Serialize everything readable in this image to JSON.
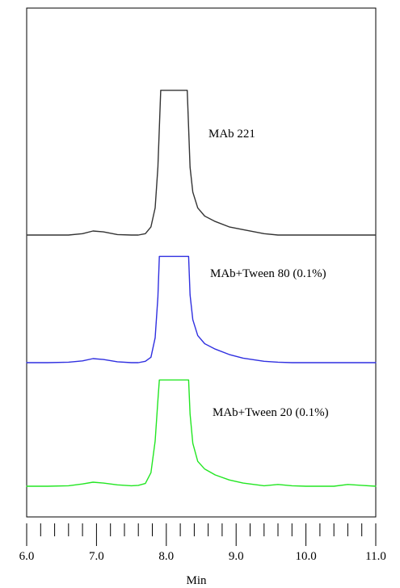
{
  "chart_data": {
    "type": "line",
    "title": "",
    "xlabel": "Min",
    "ylabel": "",
    "xlim": [
      6.0,
      11.0
    ],
    "x_ticks": [
      6.0,
      7.0,
      8.0,
      9.0,
      10.0,
      11.0
    ],
    "x_tick_labels": [
      "6.0",
      "7.0",
      "8.0",
      "9.0",
      "10.0",
      "11.0"
    ],
    "minor_tick_step": 0.1,
    "grid": false,
    "legend": "none",
    "series": [
      {
        "name": "MAb 221",
        "color": "#333333",
        "x": [
          6.0,
          6.3,
          6.6,
          6.8,
          6.95,
          7.1,
          7.3,
          7.5,
          7.6,
          7.7,
          7.78,
          7.84,
          7.88,
          7.92,
          8.3,
          8.34,
          8.38,
          8.45,
          8.55,
          8.7,
          8.9,
          9.1,
          9.4,
          9.6,
          9.8,
          10.0,
          10.2,
          10.4,
          10.6,
          10.8,
          11.0
        ],
        "y": [
          0.0,
          0.0,
          0.0,
          0.03,
          0.09,
          0.07,
          0.01,
          0.0,
          0.0,
          0.03,
          0.18,
          0.6,
          1.5,
          3.2,
          3.2,
          1.5,
          0.95,
          0.6,
          0.42,
          0.3,
          0.18,
          0.12,
          0.03,
          0.0,
          0.0,
          0.0,
          0.0,
          0.0,
          0.0,
          0.0,
          0.0
        ]
      },
      {
        "name": "MAb+Tween 80 (0.1%)",
        "color": "#2f2fe0",
        "x": [
          6.0,
          6.3,
          6.6,
          6.8,
          6.95,
          7.1,
          7.3,
          7.5,
          7.6,
          7.7,
          7.78,
          7.84,
          7.88,
          7.9,
          8.32,
          8.34,
          8.38,
          8.45,
          8.55,
          8.7,
          8.9,
          9.1,
          9.4,
          9.6,
          9.8,
          10.0,
          10.2,
          10.4,
          10.6,
          10.8,
          11.0
        ],
        "y": [
          0.0,
          0.0,
          0.01,
          0.04,
          0.09,
          0.07,
          0.02,
          0.0,
          0.0,
          0.03,
          0.12,
          0.55,
          1.45,
          2.35,
          2.35,
          1.5,
          0.95,
          0.6,
          0.42,
          0.3,
          0.18,
          0.1,
          0.03,
          0.01,
          0.0,
          0.0,
          0.0,
          0.0,
          0.0,
          0.0,
          0.0
        ]
      },
      {
        "name": "MAb+Tween 20 (0.1%)",
        "color": "#22e622",
        "x": [
          6.0,
          6.3,
          6.6,
          6.8,
          6.95,
          7.1,
          7.3,
          7.5,
          7.6,
          7.7,
          7.78,
          7.84,
          7.88,
          7.9,
          8.32,
          8.34,
          8.38,
          8.45,
          8.55,
          8.7,
          8.9,
          9.1,
          9.4,
          9.6,
          9.8,
          10.0,
          10.2,
          10.4,
          10.6,
          10.8,
          11.0
        ],
        "y": [
          0.0,
          0.0,
          0.01,
          0.05,
          0.09,
          0.07,
          0.03,
          0.01,
          0.02,
          0.06,
          0.3,
          1.0,
          1.9,
          2.35,
          2.35,
          1.6,
          0.95,
          0.55,
          0.38,
          0.25,
          0.14,
          0.07,
          0.01,
          0.04,
          0.01,
          0.0,
          0.0,
          0.0,
          0.04,
          0.02,
          0.0
        ]
      }
    ]
  }
}
